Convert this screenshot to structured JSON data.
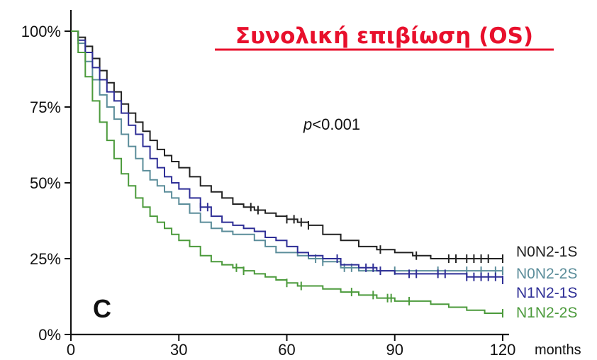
{
  "chart_data": {
    "type": "line",
    "title": "Συνολική επιβίωση (OS)",
    "panel_label": "C",
    "annotation": {
      "prefix": "p",
      "rest": "<0.001"
    },
    "xlabel": "months",
    "ylabel": "",
    "xlim": [
      0,
      120
    ],
    "ylim": [
      0,
      100
    ],
    "x_ticks": [
      0,
      30,
      60,
      90,
      120
    ],
    "x_tick_labels": [
      "0",
      "30",
      "60",
      "90",
      "120"
    ],
    "y_ticks": [
      0,
      25,
      50,
      75,
      100
    ],
    "y_tick_labels": [
      "0%",
      "25%",
      "50%",
      "75%",
      "100%"
    ],
    "grid": false,
    "legend_position": "right",
    "series": [
      {
        "name": "N0N2-1S",
        "color": "#222222",
        "points": [
          [
            0,
            100
          ],
          [
            2,
            98
          ],
          [
            4,
            95
          ],
          [
            6,
            91
          ],
          [
            8,
            87
          ],
          [
            10,
            83
          ],
          [
            12,
            80
          ],
          [
            14,
            76
          ],
          [
            16,
            73
          ],
          [
            18,
            70
          ],
          [
            20,
            67
          ],
          [
            22,
            64
          ],
          [
            24,
            61
          ],
          [
            26,
            59
          ],
          [
            28,
            57
          ],
          [
            30,
            55
          ],
          [
            33,
            52
          ],
          [
            36,
            49
          ],
          [
            39,
            47
          ],
          [
            42,
            45
          ],
          [
            45,
            43
          ],
          [
            48,
            42
          ],
          [
            51,
            41
          ],
          [
            54,
            40
          ],
          [
            57,
            39
          ],
          [
            60,
            38
          ],
          [
            63,
            37
          ],
          [
            66,
            36
          ],
          [
            70,
            33
          ],
          [
            75,
            31
          ],
          [
            80,
            29
          ],
          [
            85,
            28
          ],
          [
            90,
            27
          ],
          [
            95,
            26
          ],
          [
            100,
            25
          ],
          [
            110,
            25
          ],
          [
            120,
            25
          ]
        ],
        "censor_x": [
          50,
          52,
          60,
          62,
          64,
          66,
          86,
          96,
          105,
          107,
          110,
          112,
          114,
          116,
          120
        ]
      },
      {
        "name": "N0N2-2S",
        "color": "#5b8d9a",
        "points": [
          [
            0,
            100
          ],
          [
            2,
            96
          ],
          [
            4,
            90
          ],
          [
            6,
            84
          ],
          [
            8,
            79
          ],
          [
            10,
            75
          ],
          [
            12,
            71
          ],
          [
            14,
            66
          ],
          [
            16,
            62
          ],
          [
            18,
            58
          ],
          [
            20,
            54
          ],
          [
            22,
            51
          ],
          [
            24,
            49
          ],
          [
            26,
            47
          ],
          [
            28,
            45
          ],
          [
            30,
            43
          ],
          [
            33,
            40
          ],
          [
            36,
            37
          ],
          [
            39,
            35
          ],
          [
            42,
            34
          ],
          [
            45,
            33
          ],
          [
            48,
            33
          ],
          [
            51,
            31
          ],
          [
            54,
            29
          ],
          [
            57,
            27
          ],
          [
            60,
            27
          ],
          [
            63,
            26
          ],
          [
            66,
            25
          ],
          [
            70,
            24
          ],
          [
            75,
            22
          ],
          [
            80,
            21
          ],
          [
            85,
            21
          ],
          [
            90,
            21
          ],
          [
            100,
            21
          ],
          [
            110,
            21
          ],
          [
            120,
            21
          ]
        ],
        "censor_x": [
          68,
          70,
          76,
          78,
          90,
          102,
          110,
          114,
          118,
          120
        ]
      },
      {
        "name": "N1N2-1S",
        "color": "#2e2e96",
        "points": [
          [
            0,
            100
          ],
          [
            2,
            97
          ],
          [
            4,
            93
          ],
          [
            6,
            88
          ],
          [
            8,
            84
          ],
          [
            10,
            80
          ],
          [
            12,
            77
          ],
          [
            14,
            73
          ],
          [
            16,
            69
          ],
          [
            18,
            66
          ],
          [
            20,
            62
          ],
          [
            22,
            58
          ],
          [
            24,
            55
          ],
          [
            26,
            52
          ],
          [
            28,
            50
          ],
          [
            30,
            48
          ],
          [
            33,
            45
          ],
          [
            36,
            42
          ],
          [
            39,
            39
          ],
          [
            42,
            37
          ],
          [
            45,
            36
          ],
          [
            48,
            35
          ],
          [
            51,
            34
          ],
          [
            54,
            32
          ],
          [
            57,
            31
          ],
          [
            60,
            29
          ],
          [
            63,
            27
          ],
          [
            66,
            26
          ],
          [
            70,
            25
          ],
          [
            75,
            23
          ],
          [
            80,
            22
          ],
          [
            85,
            21
          ],
          [
            90,
            20
          ],
          [
            100,
            20
          ],
          [
            110,
            19
          ],
          [
            120,
            18
          ]
        ],
        "censor_x": [
          36,
          38,
          74,
          82,
          84,
          86,
          94,
          96,
          102,
          104,
          110,
          112,
          114,
          116,
          118,
          120
        ]
      },
      {
        "name": "N1N2-2S",
        "color": "#4b9a3b",
        "points": [
          [
            0,
            100
          ],
          [
            2,
            93
          ],
          [
            4,
            85
          ],
          [
            6,
            77
          ],
          [
            8,
            70
          ],
          [
            10,
            64
          ],
          [
            12,
            58
          ],
          [
            14,
            53
          ],
          [
            16,
            49
          ],
          [
            18,
            45
          ],
          [
            20,
            42
          ],
          [
            22,
            39
          ],
          [
            24,
            37
          ],
          [
            26,
            35
          ],
          [
            28,
            33
          ],
          [
            30,
            31
          ],
          [
            33,
            29
          ],
          [
            36,
            26
          ],
          [
            39,
            24
          ],
          [
            42,
            23
          ],
          [
            45,
            22
          ],
          [
            48,
            21
          ],
          [
            51,
            20
          ],
          [
            54,
            19
          ],
          [
            57,
            18
          ],
          [
            60,
            17
          ],
          [
            63,
            16
          ],
          [
            66,
            16
          ],
          [
            70,
            15
          ],
          [
            75,
            14
          ],
          [
            80,
            13
          ],
          [
            85,
            12
          ],
          [
            90,
            11
          ],
          [
            95,
            11
          ],
          [
            100,
            10
          ],
          [
            105,
            9
          ],
          [
            110,
            8
          ],
          [
            115,
            7
          ],
          [
            120,
            7
          ]
        ],
        "censor_x": [
          46,
          48,
          60,
          64,
          78,
          84,
          88,
          89,
          94,
          120
        ]
      }
    ]
  }
}
